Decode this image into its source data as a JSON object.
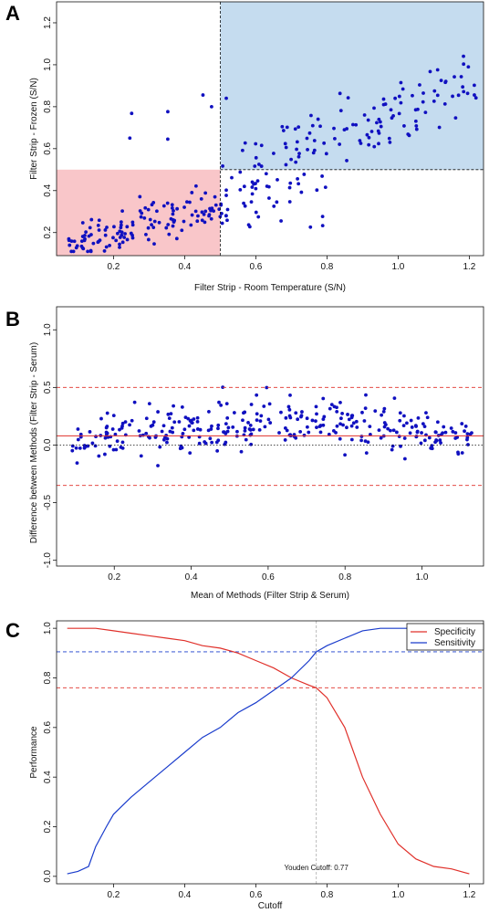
{
  "panels": [
    {
      "letter": "A"
    },
    {
      "letter": "B"
    },
    {
      "letter": "C"
    }
  ],
  "chart_data": [
    {
      "type": "scatter",
      "panel": "A",
      "xlabel": "Filter Strip - Room Temperature (S/N)",
      "ylabel": "Filter Strip - Frozen (S/N)",
      "xlim": [
        0.04,
        1.24
      ],
      "ylim": [
        0.09,
        1.3
      ],
      "xticks": [
        0.2,
        0.4,
        0.6,
        0.8,
        1.0,
        1.2
      ],
      "xtick_labels": [
        "0.2",
        "0.4",
        "0.6",
        "0.8",
        "1.0",
        "1.2"
      ],
      "yticks": [
        0.2,
        0.4,
        0.6,
        0.8,
        1.0,
        1.2
      ],
      "ytick_labels": [
        "0.2",
        "0.4",
        "0.6",
        "0.8",
        "1.0",
        "1.2"
      ],
      "cutoff_x": 0.5,
      "cutoff_y": 0.5,
      "regions": [
        {
          "name": "both-negative",
          "x": [
            0.04,
            0.5
          ],
          "y": [
            0.09,
            0.5
          ],
          "color": "#f9c6c9"
        },
        {
          "name": "both-positive",
          "x": [
            0.5,
            1.24
          ],
          "y": [
            0.5,
            1.3
          ],
          "color": "#c5dcef"
        }
      ],
      "point_color": "#1010c0",
      "n_points": 300
    },
    {
      "type": "scatter",
      "panel": "B",
      "xlabel": "Mean of Methods (Filter Strip & Serum)",
      "ylabel": "Difference between Methods (Filter Strip - Serum)",
      "xlim": [
        0.05,
        1.16
      ],
      "ylim": [
        -1.05,
        1.2
      ],
      "xticks": [
        0.2,
        0.4,
        0.6,
        0.8,
        1.0
      ],
      "xtick_labels": [
        "0.2",
        "0.4",
        "0.6",
        "0.8",
        "1.0"
      ],
      "yticks": [
        -1.0,
        -0.5,
        0.0,
        0.5,
        1.0
      ],
      "ytick_labels": [
        "-1.0",
        "-0.5",
        "0.0",
        "0.5",
        "1.0"
      ],
      "mean_difference": 0.08,
      "upper_limit": 0.5,
      "lower_limit": -0.35,
      "zero_line": 0.0,
      "point_color": "#1010c0",
      "line_color": "#e0302a",
      "n_points": 320
    },
    {
      "type": "line",
      "panel": "C",
      "xlabel": "Cutoff",
      "ylabel": "Performance",
      "xlim": [
        0.04,
        1.24
      ],
      "ylim": [
        -0.03,
        1.03
      ],
      "xticks": [
        0.2,
        0.4,
        0.6,
        0.8,
        1.0,
        1.2
      ],
      "xtick_labels": [
        "0.2",
        "0.4",
        "0.6",
        "0.8",
        "1.0",
        "1.2"
      ],
      "yticks": [
        0.0,
        0.2,
        0.4,
        0.6,
        0.8,
        1.0
      ],
      "ytick_labels": [
        "0.0",
        "0.2",
        "0.4",
        "0.6",
        "0.8",
        "1.0"
      ],
      "legend_position": "top-right",
      "series": [
        {
          "name": "Specificity",
          "color": "#e0302a",
          "x": [
            0.07,
            0.15,
            0.2,
            0.25,
            0.3,
            0.35,
            0.4,
            0.45,
            0.5,
            0.55,
            0.6,
            0.65,
            0.7,
            0.75,
            0.77,
            0.8,
            0.85,
            0.9,
            0.95,
            1.0,
            1.05,
            1.1,
            1.15,
            1.2
          ],
          "values": [
            1.0,
            1.0,
            0.99,
            0.98,
            0.97,
            0.96,
            0.95,
            0.93,
            0.92,
            0.9,
            0.87,
            0.84,
            0.8,
            0.77,
            0.76,
            0.72,
            0.6,
            0.4,
            0.25,
            0.13,
            0.07,
            0.04,
            0.03,
            0.01
          ]
        },
        {
          "name": "Sensitivity",
          "color": "#1a3ccc",
          "x": [
            0.07,
            0.1,
            0.13,
            0.15,
            0.18,
            0.2,
            0.25,
            0.3,
            0.35,
            0.4,
            0.45,
            0.5,
            0.55,
            0.6,
            0.65,
            0.7,
            0.75,
            0.77,
            0.8,
            0.85,
            0.9,
            0.95,
            1.0,
            1.05,
            1.1,
            1.15,
            1.2
          ],
          "values": [
            0.01,
            0.02,
            0.04,
            0.12,
            0.2,
            0.25,
            0.32,
            0.38,
            0.44,
            0.5,
            0.56,
            0.6,
            0.66,
            0.7,
            0.75,
            0.8,
            0.87,
            0.905,
            0.93,
            0.96,
            0.99,
            1.0,
            1.0,
            1.0,
            1.0,
            1.0,
            1.0
          ]
        }
      ],
      "hlines": [
        {
          "y": 0.905,
          "color": "#1a3ccc"
        },
        {
          "y": 0.76,
          "color": "#e0302a"
        }
      ],
      "vline": {
        "x": 0.77,
        "color": "#aaaaaa"
      },
      "annotation": "Youden Cutoff:  0.77",
      "annotation_x": 0.77,
      "annotation_y": 0.025
    }
  ]
}
